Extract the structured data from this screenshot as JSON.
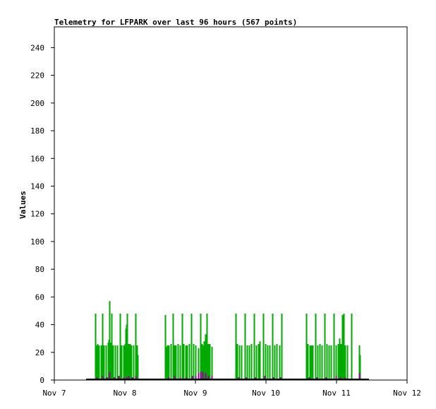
{
  "chart_data": {
    "type": "bar",
    "title": "Telemetry for LFPARK over last 96 hours (567 points)",
    "xlabel": "",
    "ylabel": "Values",
    "ylim": [
      0,
      255
    ],
    "yticks": [
      0,
      20,
      40,
      60,
      80,
      100,
      120,
      140,
      160,
      180,
      200,
      220,
      240
    ],
    "xlim": [
      "Nov 7",
      "Nov 12"
    ],
    "xticks": [
      "Nov 7",
      "Nov 8",
      "Nov 9",
      "Nov 10",
      "Nov 11",
      "Nov 12"
    ],
    "grid": false,
    "legend": "none",
    "x_unit": "days after Nov 7 00:00",
    "series": [
      {
        "color": "#00aa00",
        "style": "impulse",
        "points": [
          [
            0.58,
            48
          ],
          [
            0.59,
            25
          ],
          [
            0.61,
            26
          ],
          [
            0.63,
            25
          ],
          [
            0.66,
            25
          ],
          [
            0.68,
            48
          ],
          [
            0.7,
            25
          ],
          [
            0.73,
            25
          ],
          [
            0.76,
            27
          ],
          [
            0.77,
            29
          ],
          [
            0.78,
            57
          ],
          [
            0.79,
            27
          ],
          [
            0.81,
            48
          ],
          [
            0.83,
            25
          ],
          [
            0.86,
            25
          ],
          [
            0.89,
            25
          ],
          [
            0.93,
            48
          ],
          [
            0.95,
            25
          ],
          [
            0.98,
            25
          ],
          [
            1.0,
            26
          ],
          [
            1.01,
            37
          ],
          [
            1.02,
            40
          ],
          [
            1.03,
            48
          ],
          [
            1.05,
            26
          ],
          [
            1.07,
            26
          ],
          [
            1.09,
            25
          ],
          [
            1.12,
            25
          ],
          [
            1.15,
            48
          ],
          [
            1.17,
            25
          ],
          [
            1.18,
            18
          ],
          [
            1.57,
            47
          ],
          [
            1.58,
            24
          ],
          [
            1.6,
            25
          ],
          [
            1.62,
            25
          ],
          [
            1.65,
            26
          ],
          [
            1.68,
            48
          ],
          [
            1.7,
            25
          ],
          [
            1.72,
            25
          ],
          [
            1.75,
            26
          ],
          [
            1.78,
            25
          ],
          [
            1.81,
            48
          ],
          [
            1.83,
            26
          ],
          [
            1.86,
            25
          ],
          [
            1.88,
            25
          ],
          [
            1.91,
            26
          ],
          [
            1.94,
            48
          ],
          [
            1.97,
            26
          ],
          [
            2.0,
            25
          ],
          [
            2.04,
            23
          ],
          [
            2.07,
            48
          ],
          [
            2.09,
            26
          ],
          [
            2.11,
            25
          ],
          [
            2.12,
            28
          ],
          [
            2.14,
            33
          ],
          [
            2.16,
            48
          ],
          [
            2.18,
            26
          ],
          [
            2.2,
            26
          ],
          [
            2.23,
            24
          ],
          [
            2.57,
            48
          ],
          [
            2.59,
            26
          ],
          [
            2.62,
            25
          ],
          [
            2.65,
            25
          ],
          [
            2.7,
            48
          ],
          [
            2.73,
            25
          ],
          [
            2.76,
            25
          ],
          [
            2.79,
            26
          ],
          [
            2.83,
            48
          ],
          [
            2.86,
            25
          ],
          [
            2.89,
            26
          ],
          [
            2.91,
            28
          ],
          [
            2.96,
            48
          ],
          [
            2.99,
            26
          ],
          [
            3.02,
            25
          ],
          [
            3.05,
            25
          ],
          [
            3.09,
            48
          ],
          [
            3.12,
            25
          ],
          [
            3.15,
            26
          ],
          [
            3.19,
            25
          ],
          [
            3.22,
            48
          ],
          [
            3.57,
            48
          ],
          [
            3.59,
            26
          ],
          [
            3.62,
            25
          ],
          [
            3.64,
            25
          ],
          [
            3.66,
            25
          ],
          [
            3.7,
            48
          ],
          [
            3.73,
            25
          ],
          [
            3.76,
            26
          ],
          [
            3.79,
            25
          ],
          [
            3.83,
            48
          ],
          [
            3.86,
            26
          ],
          [
            3.89,
            25
          ],
          [
            3.92,
            25
          ],
          [
            3.96,
            48
          ],
          [
            3.99,
            25
          ],
          [
            4.02,
            26
          ],
          [
            4.04,
            30
          ],
          [
            4.06,
            26
          ],
          [
            4.08,
            47
          ],
          [
            4.1,
            48
          ],
          [
            4.12,
            25
          ],
          [
            4.15,
            25
          ],
          [
            4.21,
            48
          ],
          [
            4.32,
            25
          ],
          [
            4.33,
            18
          ]
        ]
      },
      {
        "color": "#990099",
        "style": "impulse",
        "points": [
          [
            0.6,
            2
          ],
          [
            0.68,
            3
          ],
          [
            0.74,
            2
          ],
          [
            0.78,
            6
          ],
          [
            0.85,
            2
          ],
          [
            0.91,
            3
          ],
          [
            0.98,
            2
          ],
          [
            1.02,
            2
          ],
          [
            1.05,
            3
          ],
          [
            1.1,
            2
          ],
          [
            1.15,
            3
          ],
          [
            1.62,
            2
          ],
          [
            1.7,
            3
          ],
          [
            1.78,
            2
          ],
          [
            1.86,
            2
          ],
          [
            1.95,
            3
          ],
          [
            2.0,
            3
          ],
          [
            2.04,
            5
          ],
          [
            2.07,
            6
          ],
          [
            2.1,
            6
          ],
          [
            2.14,
            5
          ],
          [
            2.18,
            3
          ],
          [
            2.23,
            3
          ],
          [
            2.61,
            2
          ],
          [
            2.72,
            2
          ],
          [
            2.85,
            2
          ],
          [
            2.98,
            3
          ],
          [
            3.1,
            2
          ],
          [
            3.2,
            2
          ],
          [
            3.61,
            2
          ],
          [
            3.72,
            2
          ],
          [
            3.85,
            2
          ],
          [
            3.99,
            3
          ],
          [
            4.05,
            2
          ],
          [
            4.12,
            2
          ],
          [
            4.32,
            5
          ]
        ]
      },
      {
        "color": "#000000",
        "style": "line",
        "points": [
          [
            0.45,
            0.5
          ],
          [
            4.46,
            0.5
          ]
        ]
      }
    ]
  }
}
